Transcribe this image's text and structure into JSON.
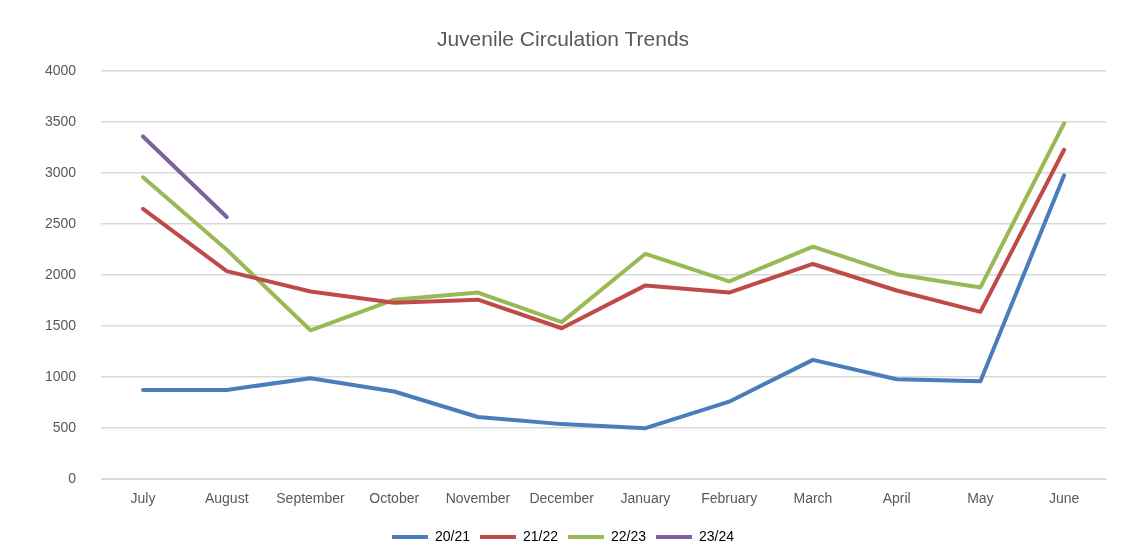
{
  "chart_data": {
    "type": "line",
    "title": "Juvenile Circulation Trends",
    "categories": [
      "July",
      "August",
      "September",
      "October",
      "November",
      "December",
      "January",
      "February",
      "March",
      "April",
      "May",
      "June"
    ],
    "series": [
      {
        "name": "20/21",
        "color": "#4a7ebb",
        "values": [
          875,
          875,
          990,
          860,
          610,
          540,
          500,
          760,
          1170,
          980,
          960,
          2980
        ]
      },
      {
        "name": "21/22",
        "color": "#be4b48",
        "values": [
          2650,
          2040,
          1840,
          1730,
          1760,
          1480,
          1900,
          1830,
          2110,
          1850,
          1640,
          3230
        ]
      },
      {
        "name": "22/23",
        "color": "#98b954",
        "values": [
          2960,
          2250,
          1460,
          1760,
          1830,
          1540,
          2210,
          1940,
          2280,
          2010,
          1880,
          3490
        ]
      },
      {
        "name": "23/24",
        "color": "#7d60a0",
        "values": [
          3360,
          2570,
          null,
          null,
          null,
          null,
          null,
          null,
          null,
          null,
          null,
          null
        ]
      }
    ],
    "ylim": [
      0,
      4000
    ],
    "yticks": [
      0,
      500,
      1000,
      1500,
      2000,
      2500,
      3000,
      3500,
      4000
    ],
    "grid": "y",
    "legend": "bottom",
    "marker": "none",
    "line_style": "solid"
  }
}
